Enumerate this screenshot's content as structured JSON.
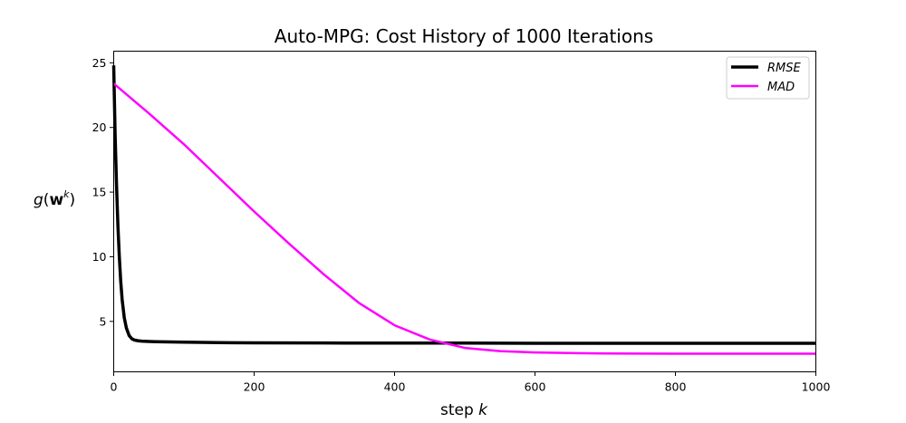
{
  "chart_data": {
    "type": "line",
    "title": "Auto-MPG: Cost History of 1000 Iterations",
    "xlabel": {
      "prefix": "step ",
      "var": "k"
    },
    "ylabel": {
      "g": "g",
      "open": "(",
      "w": "w",
      "sup": "k",
      "close": ")"
    },
    "xlim": [
      0,
      1000
    ],
    "ylim": [
      1.1,
      25.9
    ],
    "xticks": [
      0,
      200,
      400,
      600,
      800,
      1000
    ],
    "yticks": [
      5,
      10,
      15,
      20,
      25
    ],
    "grid": false,
    "legend_position": "top-right",
    "series": [
      {
        "name": "RMSE",
        "color": "#000000",
        "x": [
          0,
          2,
          4,
          6,
          8,
          10,
          12,
          15,
          18,
          22,
          26,
          30,
          35,
          40,
          50,
          60,
          80,
          100,
          150,
          200,
          300,
          400,
          500,
          600,
          700,
          800,
          900,
          1000
        ],
        "values": [
          24.8,
          19.5,
          15.6,
          12.4,
          10.0,
          8.1,
          6.7,
          5.3,
          4.5,
          3.9,
          3.65,
          3.55,
          3.5,
          3.47,
          3.45,
          3.43,
          3.41,
          3.39,
          3.36,
          3.34,
          3.33,
          3.32,
          3.32,
          3.31,
          3.31,
          3.31,
          3.31,
          3.31
        ]
      },
      {
        "name": "MAD",
        "color": "#ff00ff",
        "x": [
          0,
          50,
          100,
          150,
          200,
          250,
          300,
          350,
          400,
          450,
          500,
          550,
          600,
          650,
          700,
          800,
          900,
          1000
        ],
        "values": [
          23.4,
          21.1,
          18.7,
          16.1,
          13.5,
          11.0,
          8.6,
          6.4,
          4.7,
          3.6,
          2.95,
          2.7,
          2.6,
          2.55,
          2.52,
          2.5,
          2.5,
          2.5
        ]
      }
    ]
  }
}
